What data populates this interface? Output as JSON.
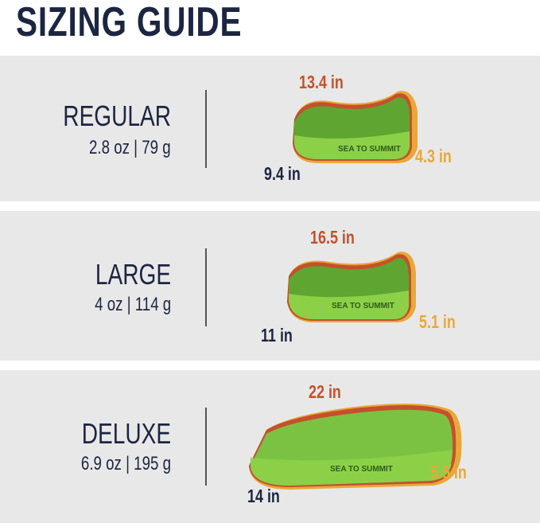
{
  "title": "SIZING GUIDE",
  "logo_text": "SEA TO SUMMIT",
  "colors": {
    "navy": "#1c2541",
    "length": "#c4512b",
    "height": "#e8a838",
    "pillow": "#7cc242",
    "panel": "#e8e8e8"
  },
  "sizes": [
    {
      "name": "REGULAR",
      "weight": "2.8 oz | 79 g",
      "length": "13.4 in",
      "width": "9.4 in",
      "height": "4.3 in"
    },
    {
      "name": "LARGE",
      "weight": "4 oz | 114 g",
      "length": "16.5 in",
      "width": "11 in",
      "height": "5.1 in"
    },
    {
      "name": "DELUXE",
      "weight": "6.9 oz | 195 g",
      "length": "22 in",
      "width": "14 in",
      "height": "5.5 in"
    }
  ]
}
